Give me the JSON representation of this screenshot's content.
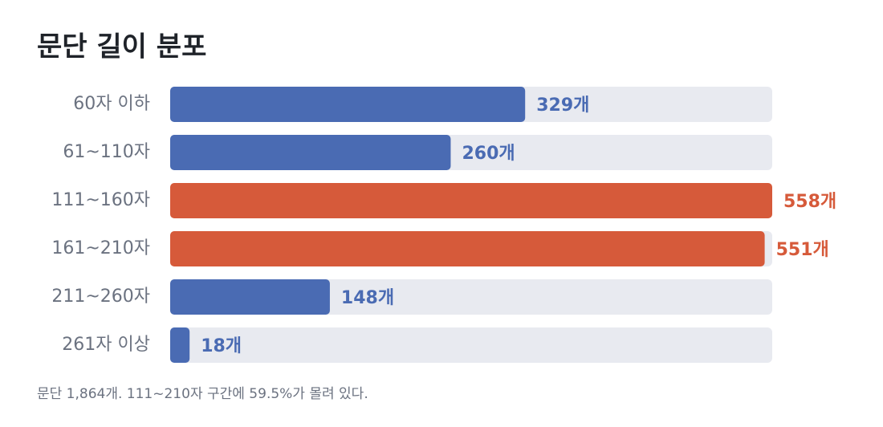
{
  "chart_data": {
    "type": "bar",
    "orientation": "horizontal",
    "title": "문단 길이 분포",
    "categories": [
      "60자 이하",
      "61~110자",
      "111~160자",
      "161~210자",
      "211~260자",
      "261자 이상"
    ],
    "values": [
      329,
      260,
      558,
      551,
      148,
      18
    ],
    "value_labels": [
      "329개",
      "260개",
      "558개",
      "551개",
      "148개",
      "18개"
    ],
    "colors": [
      "#4a6bb3",
      "#4a6bb3",
      "#d65a3a",
      "#d65a3a",
      "#4a6bb3",
      "#4a6bb3"
    ],
    "track_color": "#e8eaf0",
    "note": "문단 1,864개. 111~210자 구간에 59.5%가 몰려 있다."
  }
}
